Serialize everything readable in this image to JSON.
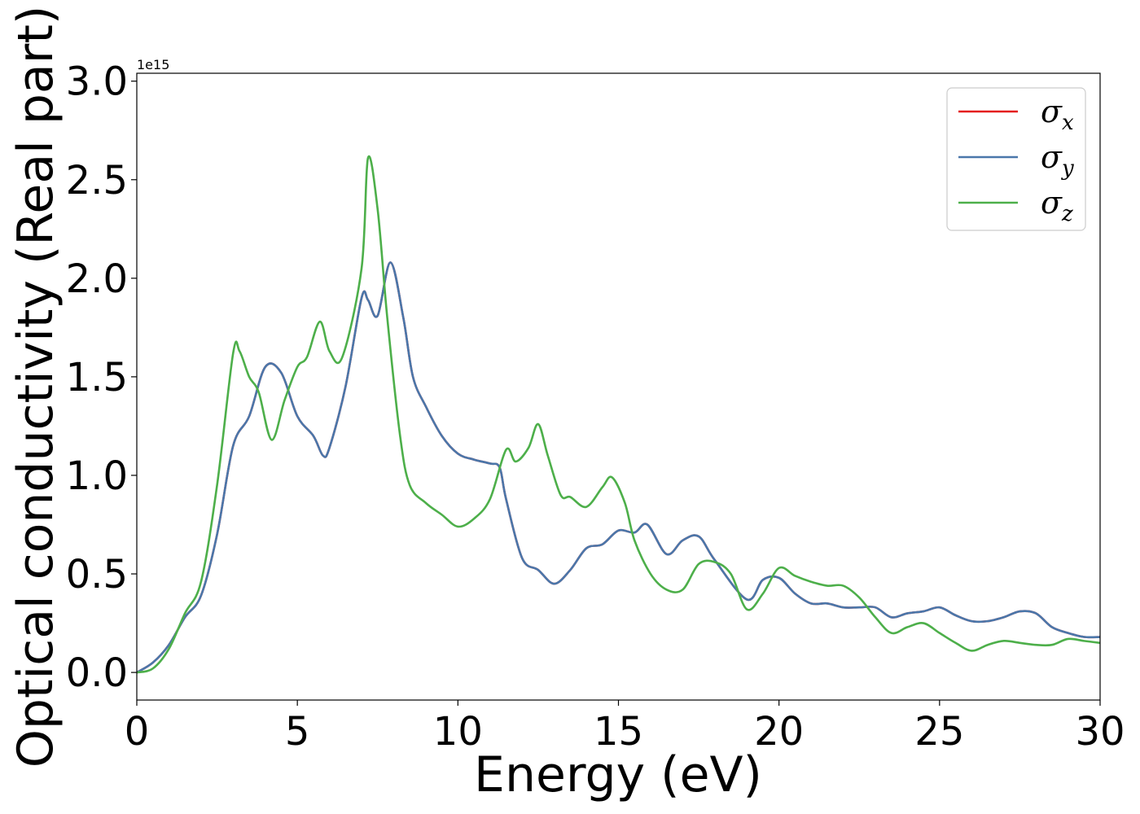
{
  "chart_data": {
    "type": "line",
    "title": "",
    "xlabel": "Energy (eV)",
    "ylabel": "Optical conductivity (Real part)",
    "y_offset_text": "1e15",
    "xlim": [
      0,
      30
    ],
    "ylim": [
      -0.14,
      3.04
    ],
    "xticks": [
      0,
      5,
      10,
      15,
      20,
      25,
      30
    ],
    "xtick_labels": [
      "0",
      "5",
      "10",
      "15",
      "20",
      "25",
      "30"
    ],
    "yticks": [
      0.0,
      0.5,
      1.0,
      1.5,
      2.0,
      2.5,
      3.0
    ],
    "ytick_labels": [
      "0.0",
      "0.5",
      "1.0",
      "1.5",
      "2.0",
      "2.5",
      "3.0"
    ],
    "grid": false,
    "legend_position": "top-right",
    "series": [
      {
        "name": "σ_x",
        "legend_base": "σ",
        "legend_sub": "x",
        "color": "#e41a1c",
        "points": [
          [
            0,
            0
          ],
          [
            0.5,
            0.05
          ],
          [
            1,
            0.14
          ],
          [
            1.5,
            0.28
          ],
          [
            2,
            0.39
          ],
          [
            2.5,
            0.7
          ],
          [
            3,
            1.15
          ],
          [
            3.5,
            1.3
          ],
          [
            4,
            1.55
          ],
          [
            4.5,
            1.52
          ],
          [
            5,
            1.3
          ],
          [
            5.5,
            1.2
          ],
          [
            5.8,
            1.1
          ],
          [
            6,
            1.14
          ],
          [
            6.5,
            1.45
          ],
          [
            7,
            1.9
          ],
          [
            7.2,
            1.89
          ],
          [
            7.5,
            1.81
          ],
          [
            7.9,
            2.08
          ],
          [
            8.3,
            1.8
          ],
          [
            8.6,
            1.5
          ],
          [
            9,
            1.35
          ],
          [
            9.5,
            1.2
          ],
          [
            10,
            1.11
          ],
          [
            10.5,
            1.08
          ],
          [
            11,
            1.06
          ],
          [
            11.3,
            1.04
          ],
          [
            11.5,
            0.88
          ],
          [
            12,
            0.58
          ],
          [
            12.5,
            0.52
          ],
          [
            13,
            0.45
          ],
          [
            13.5,
            0.52
          ],
          [
            14,
            0.63
          ],
          [
            14.5,
            0.65
          ],
          [
            15,
            0.72
          ],
          [
            15.5,
            0.71
          ],
          [
            15.9,
            0.75
          ],
          [
            16.5,
            0.6
          ],
          [
            17,
            0.67
          ],
          [
            17.5,
            0.69
          ],
          [
            18,
            0.57
          ],
          [
            19,
            0.37
          ],
          [
            19.5,
            0.47
          ],
          [
            20,
            0.48
          ],
          [
            20.5,
            0.4
          ],
          [
            21,
            0.35
          ],
          [
            21.5,
            0.35
          ],
          [
            22,
            0.33
          ],
          [
            22.5,
            0.33
          ],
          [
            23,
            0.33
          ],
          [
            23.5,
            0.28
          ],
          [
            24,
            0.3
          ],
          [
            24.5,
            0.31
          ],
          [
            25,
            0.33
          ],
          [
            25.5,
            0.29
          ],
          [
            26,
            0.26
          ],
          [
            26.5,
            0.26
          ],
          [
            27,
            0.28
          ],
          [
            27.5,
            0.31
          ],
          [
            28,
            0.3
          ],
          [
            28.5,
            0.23
          ],
          [
            29,
            0.2
          ],
          [
            29.5,
            0.18
          ],
          [
            30,
            0.18
          ]
        ]
      },
      {
        "name": "σ_y",
        "legend_base": "σ",
        "legend_sub": "y",
        "color": "#4a77aa",
        "points": [
          [
            0,
            0
          ],
          [
            0.5,
            0.05
          ],
          [
            1,
            0.14
          ],
          [
            1.5,
            0.28
          ],
          [
            2,
            0.39
          ],
          [
            2.5,
            0.7
          ],
          [
            3,
            1.15
          ],
          [
            3.5,
            1.3
          ],
          [
            4,
            1.55
          ],
          [
            4.5,
            1.52
          ],
          [
            5,
            1.3
          ],
          [
            5.5,
            1.2
          ],
          [
            5.8,
            1.1
          ],
          [
            6,
            1.14
          ],
          [
            6.5,
            1.45
          ],
          [
            7,
            1.9
          ],
          [
            7.2,
            1.89
          ],
          [
            7.5,
            1.81
          ],
          [
            7.9,
            2.08
          ],
          [
            8.3,
            1.8
          ],
          [
            8.6,
            1.5
          ],
          [
            9,
            1.35
          ],
          [
            9.5,
            1.2
          ],
          [
            10,
            1.11
          ],
          [
            10.5,
            1.08
          ],
          [
            11,
            1.06
          ],
          [
            11.3,
            1.04
          ],
          [
            11.5,
            0.88
          ],
          [
            12,
            0.58
          ],
          [
            12.5,
            0.52
          ],
          [
            13,
            0.45
          ],
          [
            13.5,
            0.52
          ],
          [
            14,
            0.63
          ],
          [
            14.5,
            0.65
          ],
          [
            15,
            0.72
          ],
          [
            15.5,
            0.71
          ],
          [
            15.9,
            0.75
          ],
          [
            16.5,
            0.6
          ],
          [
            17,
            0.67
          ],
          [
            17.5,
            0.69
          ],
          [
            18,
            0.57
          ],
          [
            19,
            0.37
          ],
          [
            19.5,
            0.47
          ],
          [
            20,
            0.48
          ],
          [
            20.5,
            0.4
          ],
          [
            21,
            0.35
          ],
          [
            21.5,
            0.35
          ],
          [
            22,
            0.33
          ],
          [
            22.5,
            0.33
          ],
          [
            23,
            0.33
          ],
          [
            23.5,
            0.28
          ],
          [
            24,
            0.3
          ],
          [
            24.5,
            0.31
          ],
          [
            25,
            0.33
          ],
          [
            25.5,
            0.29
          ],
          [
            26,
            0.26
          ],
          [
            26.5,
            0.26
          ],
          [
            27,
            0.28
          ],
          [
            27.5,
            0.31
          ],
          [
            28,
            0.3
          ],
          [
            28.5,
            0.23
          ],
          [
            29,
            0.2
          ],
          [
            29.5,
            0.18
          ],
          [
            30,
            0.18
          ]
        ]
      },
      {
        "name": "σ_z",
        "legend_base": "σ",
        "legend_sub": "z",
        "color": "#4daf4a",
        "points": [
          [
            0,
            0
          ],
          [
            0.5,
            0.02
          ],
          [
            1,
            0.12
          ],
          [
            1.5,
            0.3
          ],
          [
            2,
            0.46
          ],
          [
            2.5,
            0.95
          ],
          [
            3,
            1.62
          ],
          [
            3.2,
            1.63
          ],
          [
            3.5,
            1.5
          ],
          [
            3.8,
            1.42
          ],
          [
            4.2,
            1.18
          ],
          [
            4.6,
            1.38
          ],
          [
            5,
            1.55
          ],
          [
            5.3,
            1.6
          ],
          [
            5.7,
            1.78
          ],
          [
            6,
            1.63
          ],
          [
            6.4,
            1.6
          ],
          [
            7,
            2.05
          ],
          [
            7.2,
            2.61
          ],
          [
            7.5,
            2.35
          ],
          [
            7.8,
            1.8
          ],
          [
            8.2,
            1.2
          ],
          [
            8.5,
            0.95
          ],
          [
            9,
            0.86
          ],
          [
            9.5,
            0.8
          ],
          [
            10,
            0.74
          ],
          [
            10.5,
            0.78
          ],
          [
            11,
            0.88
          ],
          [
            11.5,
            1.13
          ],
          [
            11.8,
            1.07
          ],
          [
            12.2,
            1.14
          ],
          [
            12.5,
            1.26
          ],
          [
            12.8,
            1.1
          ],
          [
            13.2,
            0.9
          ],
          [
            13.5,
            0.89
          ],
          [
            14,
            0.84
          ],
          [
            14.5,
            0.94
          ],
          [
            14.8,
            0.99
          ],
          [
            15.2,
            0.86
          ],
          [
            15.5,
            0.67
          ],
          [
            16,
            0.5
          ],
          [
            16.5,
            0.42
          ],
          [
            17,
            0.42
          ],
          [
            17.5,
            0.55
          ],
          [
            18,
            0.56
          ],
          [
            18.5,
            0.5
          ],
          [
            19,
            0.32
          ],
          [
            19.5,
            0.4
          ],
          [
            20,
            0.53
          ],
          [
            20.5,
            0.49
          ],
          [
            21,
            0.46
          ],
          [
            21.5,
            0.44
          ],
          [
            22,
            0.44
          ],
          [
            22.5,
            0.38
          ],
          [
            23,
            0.28
          ],
          [
            23.5,
            0.2
          ],
          [
            24,
            0.23
          ],
          [
            24.5,
            0.25
          ],
          [
            25,
            0.2
          ],
          [
            25.5,
            0.15
          ],
          [
            26,
            0.11
          ],
          [
            26.5,
            0.14
          ],
          [
            27,
            0.16
          ],
          [
            27.5,
            0.15
          ],
          [
            28,
            0.14
          ],
          [
            28.5,
            0.14
          ],
          [
            29,
            0.17
          ],
          [
            29.5,
            0.16
          ],
          [
            30,
            0.15
          ]
        ]
      }
    ]
  }
}
